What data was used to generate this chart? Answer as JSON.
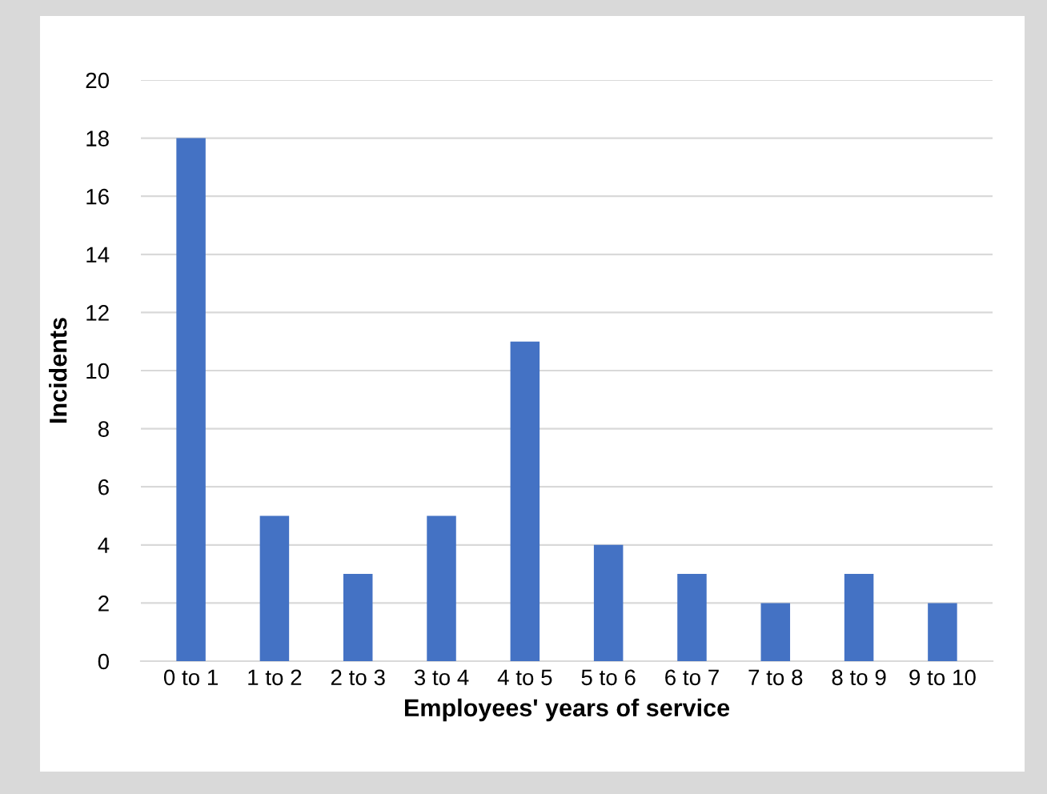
{
  "chart_data": {
    "type": "bar",
    "xlabel": "Employees' years of service",
    "ylabel": "Incidents",
    "categories": [
      "0 to 1",
      "1 to 2",
      "2 to 3",
      "3 to 4",
      "4 to 5",
      "5 to 6",
      "6 to 7",
      "7 to 8",
      "8 to 9",
      "9 to 10"
    ],
    "values": [
      18,
      5,
      3,
      5,
      11,
      4,
      3,
      2,
      3,
      2
    ],
    "color": "#4472c4",
    "ylim": [
      0,
      20
    ],
    "yticks": [
      0,
      2,
      4,
      6,
      8,
      10,
      12,
      14,
      16,
      18,
      20
    ],
    "grid": "y",
    "legend": false
  }
}
